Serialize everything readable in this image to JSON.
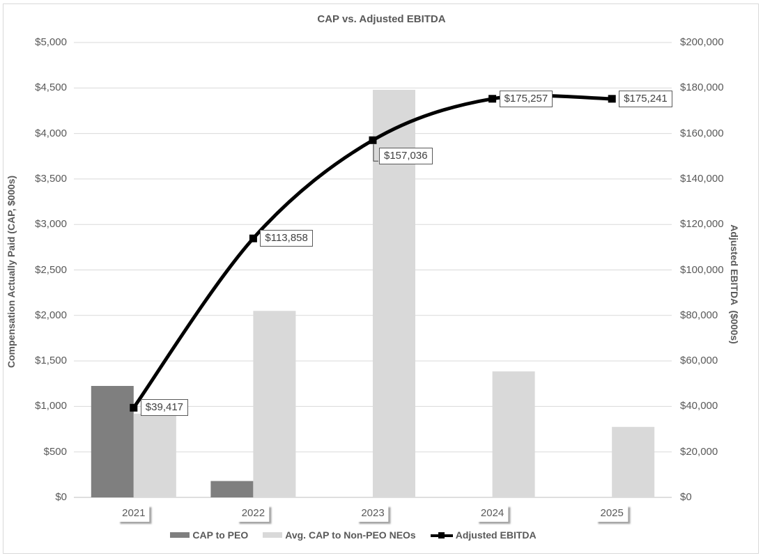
{
  "chart_data": {
    "type": "combo-bar-line",
    "title": "CAP vs. Adjusted EBITDA",
    "categories": [
      "2021",
      "2022",
      "2023",
      "2024",
      "2025"
    ],
    "series": [
      {
        "name": "CAP to PEO",
        "type": "bar",
        "axis": "left",
        "color": "#7f7f7f",
        "values": [
          1225,
          180,
          0,
          0,
          0
        ]
      },
      {
        "name": "Avg. CAP to Non-PEO NEOs",
        "type": "bar",
        "axis": "left",
        "color": "#d9d9d9",
        "values": [
          920,
          2050,
          4480,
          1385,
          775
        ]
      },
      {
        "name": "Adjusted EBITDA",
        "type": "line",
        "axis": "right",
        "color": "#000000",
        "values": [
          39417,
          113858,
          157036,
          175257,
          175241
        ],
        "data_labels": [
          "$39,417",
          "$113,858",
          "$157,036",
          "$175,257",
          "$175,241"
        ],
        "label_positions": [
          "right",
          "right",
          "below-right-callout",
          "right",
          "right"
        ]
      }
    ],
    "left_axis": {
      "title": "Compensation Actually Paid (CAP, $000s)",
      "min": 0,
      "max": 5000,
      "step": 500,
      "tick_labels": [
        "$0",
        "$500",
        "$1,000",
        "$1,500",
        "$2,000",
        "$2,500",
        "$3,000",
        "$3,500",
        "$4,000",
        "$4,500",
        "$5,000"
      ]
    },
    "right_axis": {
      "title": "Adjusted EBITDA  ($000s)",
      "min": 0,
      "max": 200000,
      "step": 20000,
      "tick_labels": [
        "$0",
        "$20,000",
        "$40,000",
        "$60,000",
        "$80,000",
        "$100,000",
        "$120,000",
        "$140,000",
        "$160,000",
        "$180,000",
        "$200,000"
      ]
    },
    "grid": true,
    "legend_position": "bottom"
  },
  "colors": {
    "grid": "#d9d9d9",
    "axis_line": "#bfbfbf",
    "tick_text": "#595959",
    "label_text": "#404040",
    "frame_border": "#d9d9d9"
  }
}
